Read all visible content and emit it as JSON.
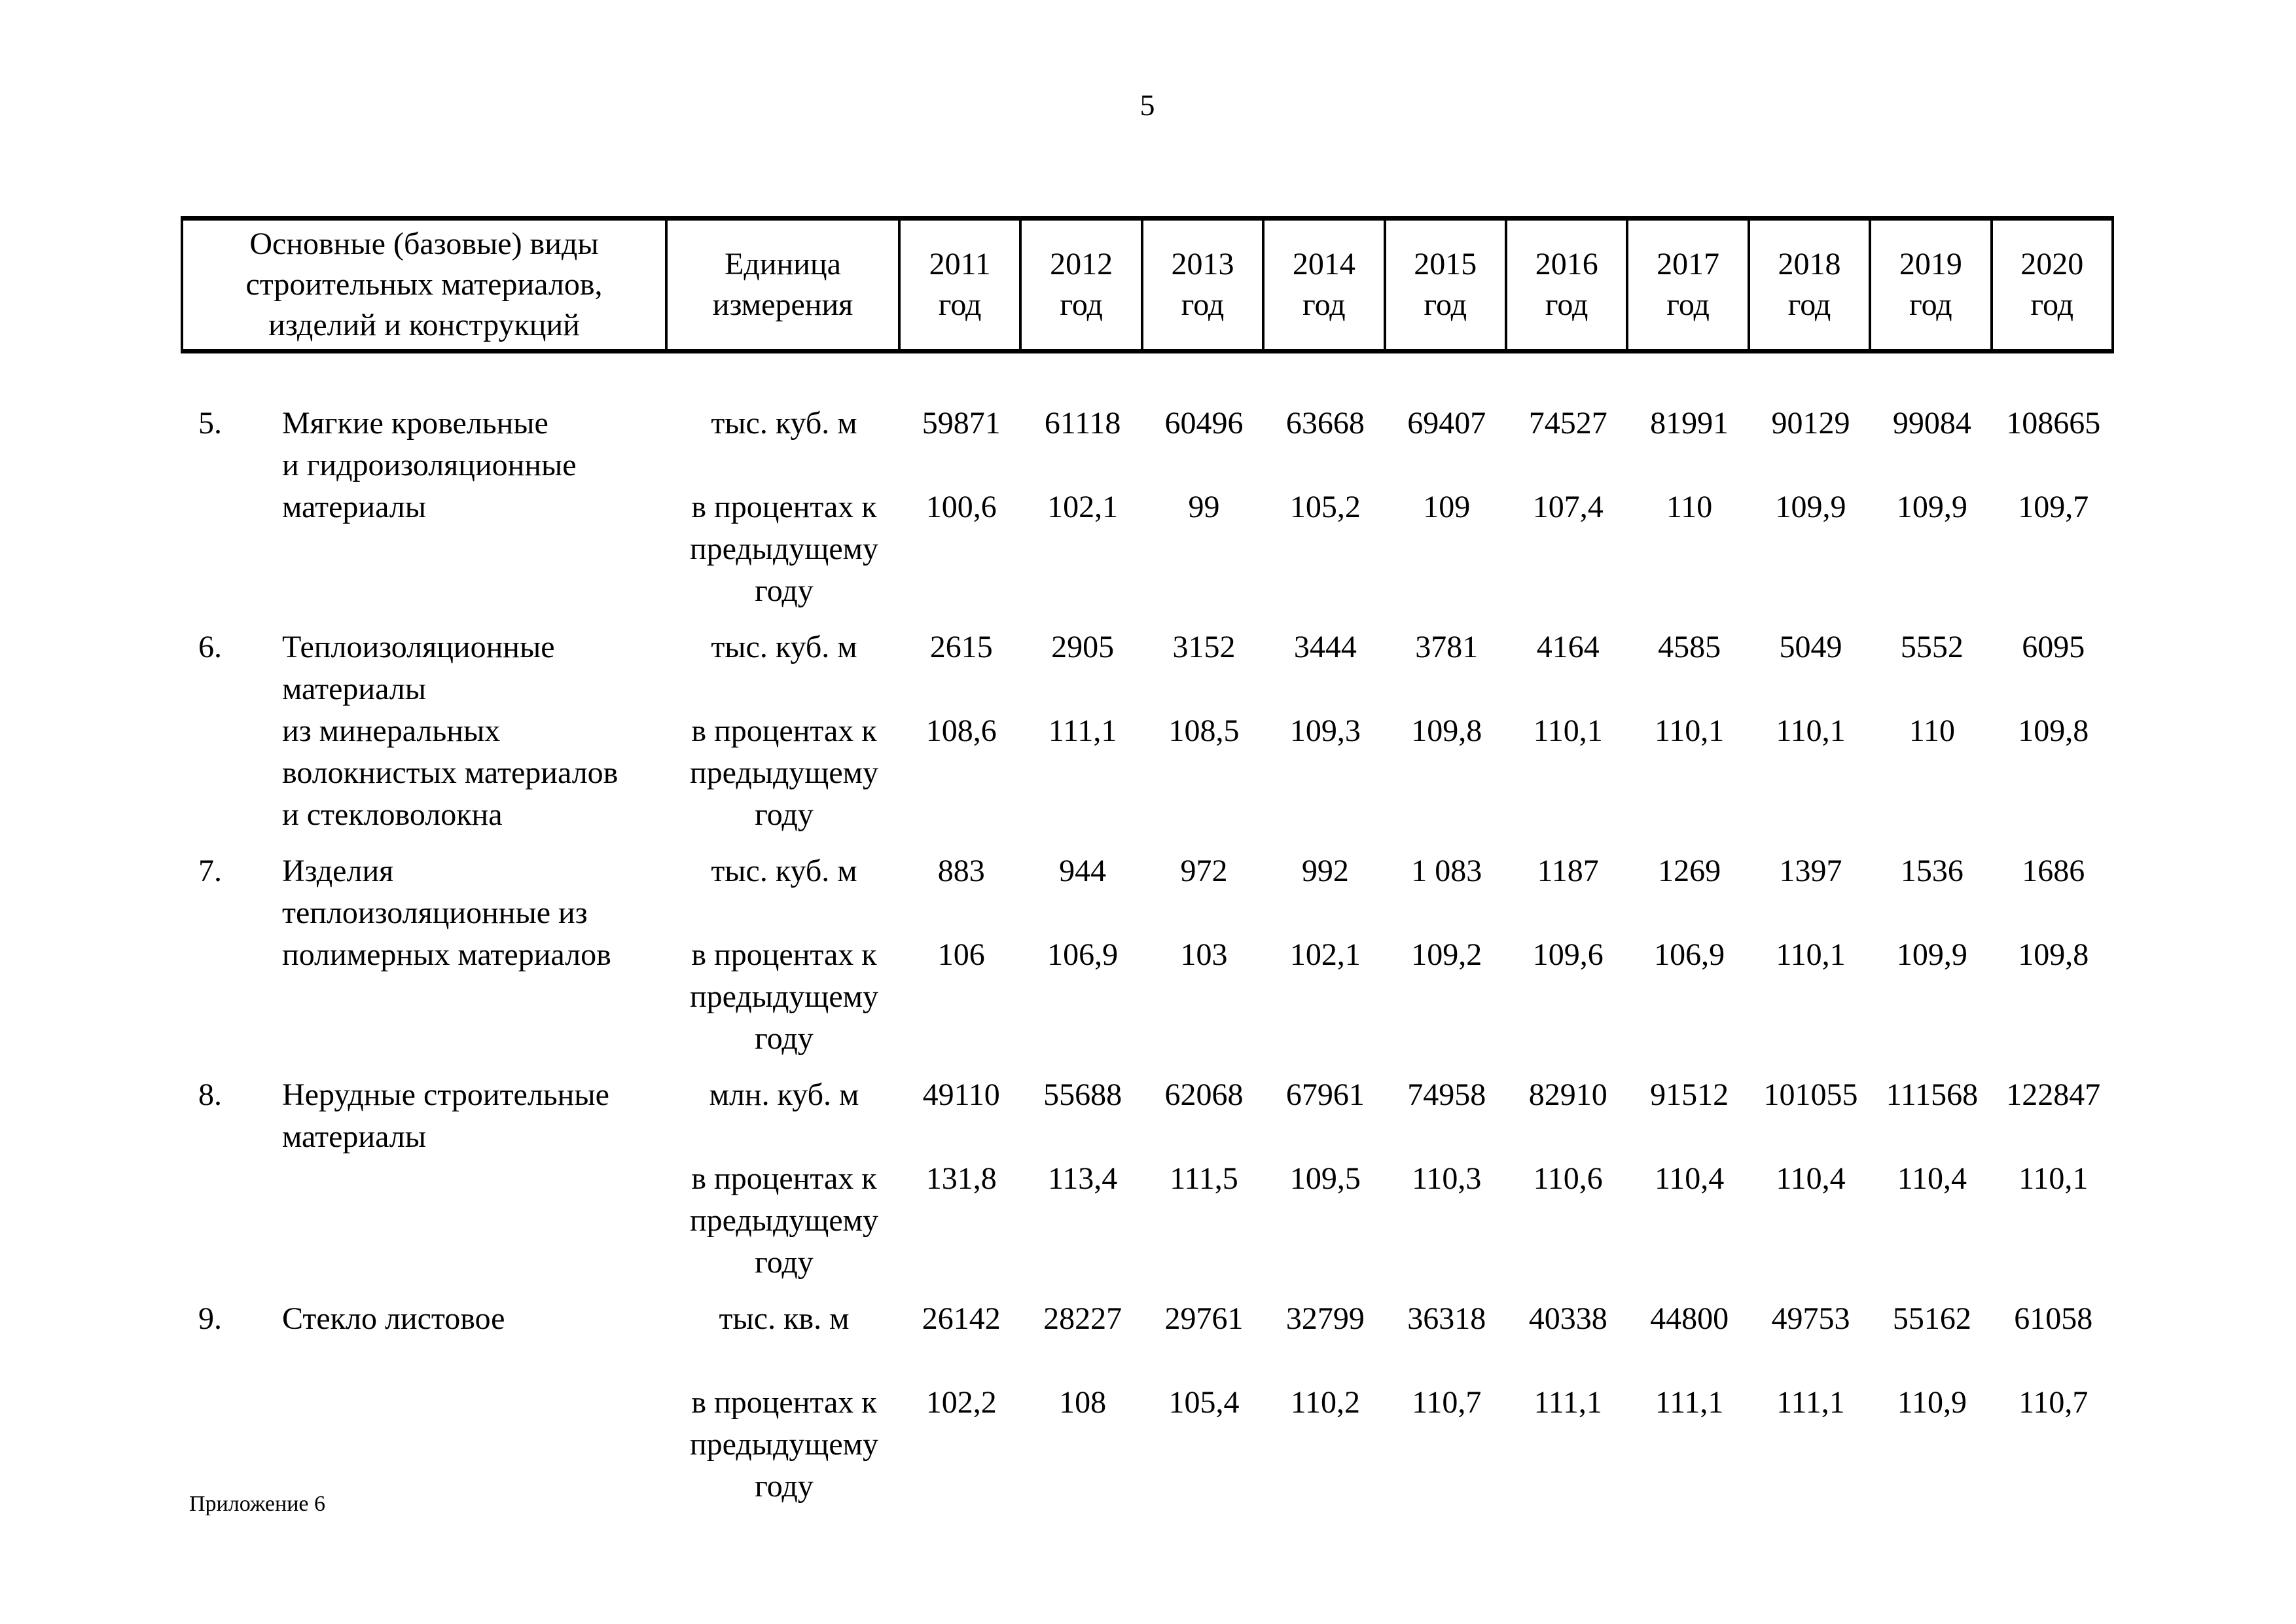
{
  "page_number": "5",
  "footer": "Приложение 6",
  "table": {
    "header": {
      "col_item": "Основные (базовые) виды\nстроительных материалов,\nизделий и конструкций",
      "col_unit": "Единица\nизмерения",
      "years": [
        "2011\nгод",
        "2012\nгод",
        "2013\nгод",
        "2014\nгод",
        "2015\nгод",
        "2016\nгод",
        "2017\nгод",
        "2018\nгод",
        "2019\nгод",
        "2020\nгод"
      ]
    },
    "rows": [
      {
        "num": "5.",
        "name": "Мягкие кровельные\nи гидроизоляционные\nматериалы",
        "unit": "тыс. куб. м",
        "unit2": "в процентах к\nпредыдущему\nгоду",
        "values": [
          "59871",
          "61118",
          "60496",
          "63668",
          "69407",
          "74527",
          "81991",
          "90129",
          "99084",
          "108665"
        ],
        "percents": [
          "100,6",
          "102,1",
          "99",
          "105,2",
          "109",
          "107,4",
          "110",
          "109,9",
          "109,9",
          "109,7"
        ]
      },
      {
        "num": "6.",
        "name": "Теплоизоляционные\nматериалы\nиз минеральных\nволокнистых материалов\nи стекловолокна",
        "unit": "тыс. куб. м",
        "unit2": "в процентах к\nпредыдущему\nгоду",
        "values": [
          "2615",
          "2905",
          "3152",
          "3444",
          "3781",
          "4164",
          "4585",
          "5049",
          "5552",
          "6095"
        ],
        "percents": [
          "108,6",
          "111,1",
          "108,5",
          "109,3",
          "109,8",
          "110,1",
          "110,1",
          "110,1",
          "110",
          "109,8"
        ]
      },
      {
        "num": "7.",
        "name": "Изделия\nтеплоизоляционные из\nполимерных материалов",
        "unit": "тыс. куб. м",
        "unit2": "в процентах к\nпредыдущему\nгоду",
        "values": [
          "883",
          "944",
          "972",
          "992",
          "1 083",
          "1187",
          "1269",
          "1397",
          "1536",
          "1686"
        ],
        "percents": [
          "106",
          "106,9",
          "103",
          "102,1",
          "109,2",
          "109,6",
          "106,9",
          "110,1",
          "109,9",
          "109,8"
        ]
      },
      {
        "num": "8.",
        "name": "Нерудные строительные\nматериалы",
        "unit": "млн. куб. м",
        "unit2": "в процентах к\nпредыдущему\nгоду",
        "values": [
          "49110",
          "55688",
          "62068",
          "67961",
          "74958",
          "82910",
          "91512",
          "101055",
          "111568",
          "122847"
        ],
        "percents": [
          "131,8",
          "113,4",
          "111,5",
          "109,5",
          "110,3",
          "110,6",
          "110,4",
          "110,4",
          "110,4",
          "110,1"
        ]
      },
      {
        "num": "9.",
        "name": "Стекло листовое",
        "unit": "тыс. кв. м",
        "unit2": "в процентах к\nпредыдущему\nгоду",
        "values": [
          "26142",
          "28227",
          "29761",
          "32799",
          "36318",
          "40338",
          "44800",
          "49753",
          "55162",
          "61058"
        ],
        "percents": [
          "102,2",
          "108",
          "105,4",
          "110,2",
          "110,7",
          "111,1",
          "111,1",
          "111,1",
          "110,9",
          "110,7"
        ]
      }
    ]
  }
}
